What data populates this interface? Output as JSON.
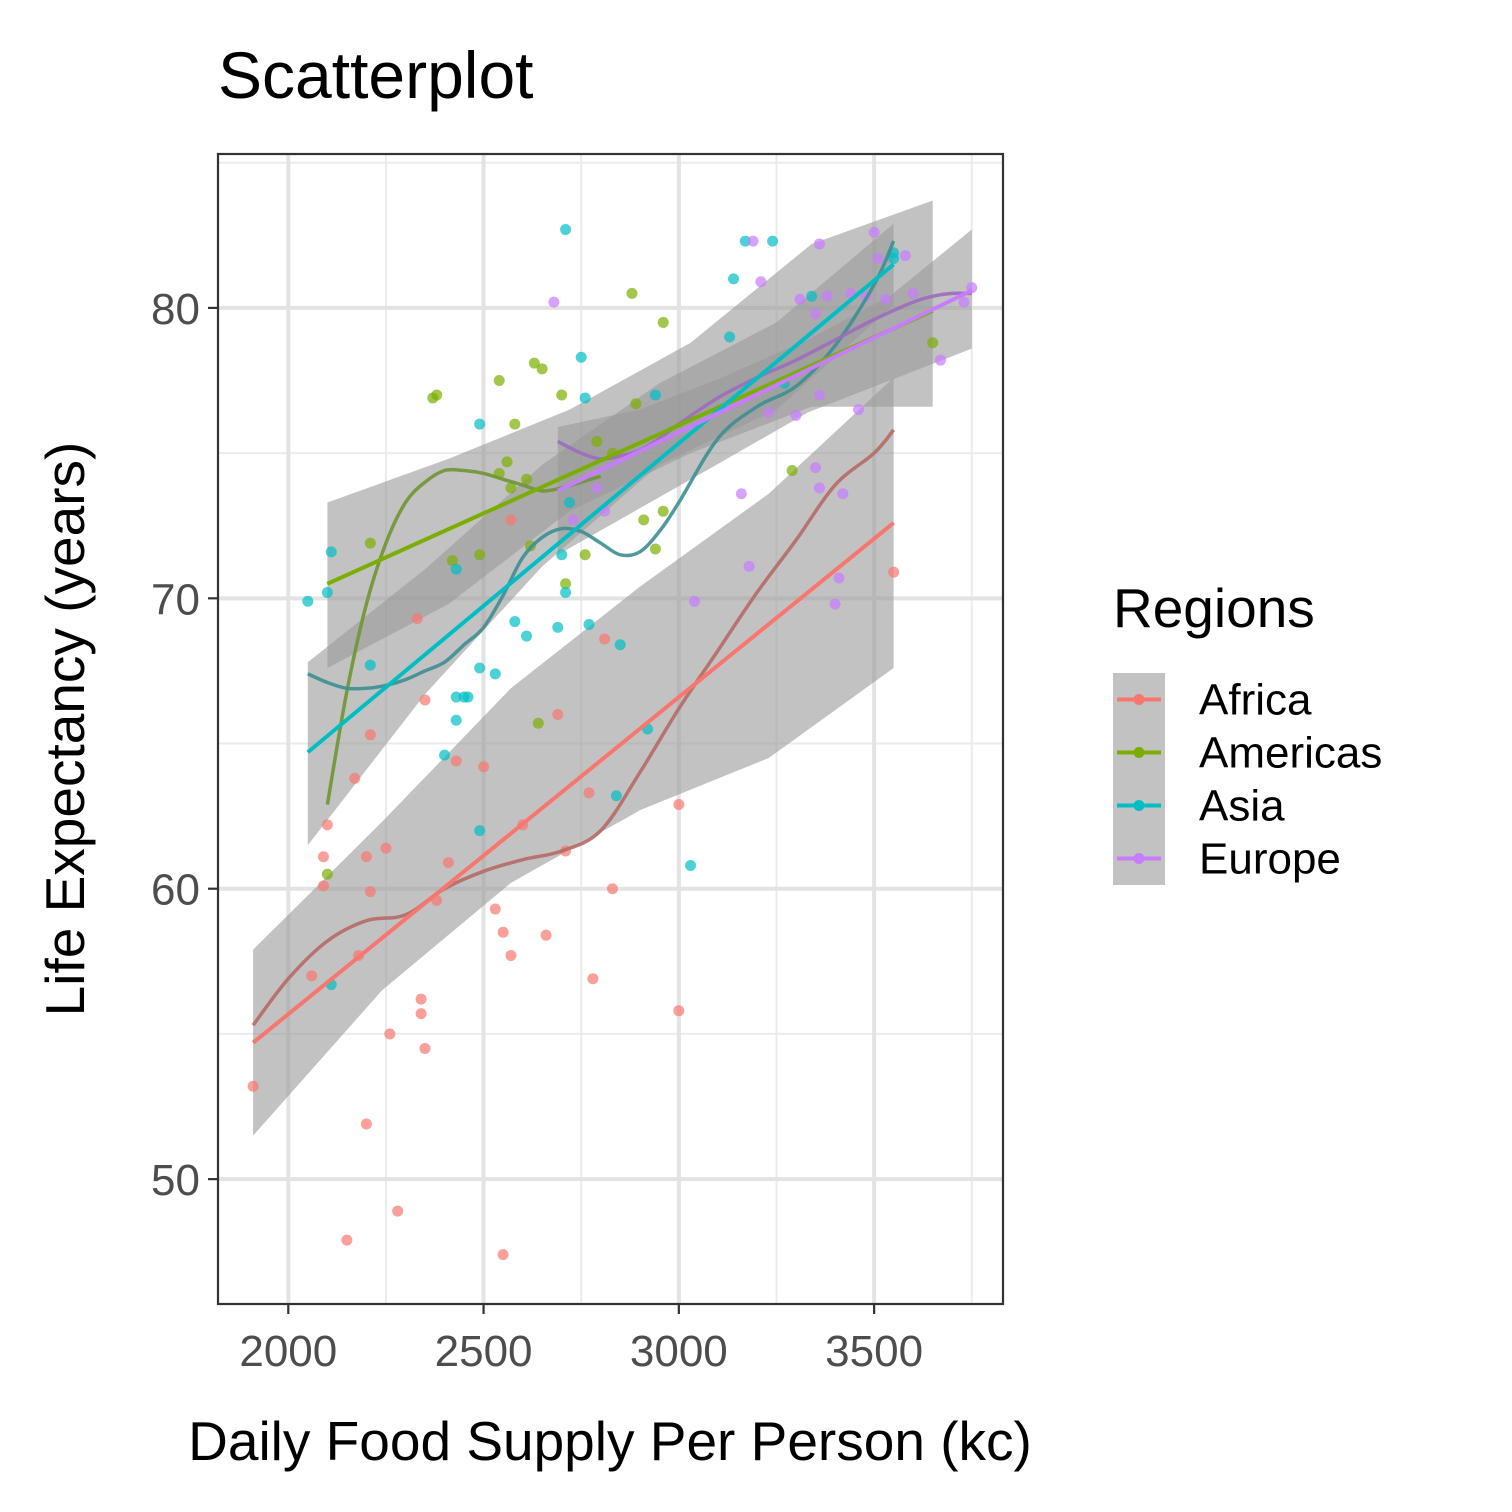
{
  "chart_data": {
    "type": "scatter",
    "title": "Scatterplot",
    "xlabel": "Daily Food Supply Per Person (kc)",
    "ylabel": "Life Expectancy (years)",
    "xlim": [
      1820,
      3830
    ],
    "ylim": [
      45.7,
      85.3
    ],
    "x_ticks": [
      2000,
      2500,
      3000,
      3500
    ],
    "y_ticks": [
      50,
      60,
      70,
      80
    ],
    "grid": true,
    "legend": {
      "title": "Regions",
      "position": "right"
    },
    "series": [
      {
        "name": "Africa",
        "color": "#F8766D",
        "points": [
          [
            1910,
            53.2
          ],
          [
            2060,
            57
          ],
          [
            2090,
            61.1
          ],
          [
            2090,
            60.1
          ],
          [
            2100,
            62.2
          ],
          [
            2150,
            47.9
          ],
          [
            2170,
            63.8
          ],
          [
            2180,
            57.7
          ],
          [
            2200,
            61.1
          ],
          [
            2200,
            51.9
          ],
          [
            2210,
            59.9
          ],
          [
            2210,
            65.3
          ],
          [
            2250,
            61.4
          ],
          [
            2260,
            55
          ],
          [
            2280,
            48.9
          ],
          [
            2330,
            69.3
          ],
          [
            2340,
            56.2
          ],
          [
            2340,
            55.7
          ],
          [
            2350,
            54.5
          ],
          [
            2350,
            66.5
          ],
          [
            2380,
            59.6
          ],
          [
            2410,
            60.9
          ],
          [
            2430,
            64.4
          ],
          [
            2500,
            64.2
          ],
          [
            2530,
            59.3
          ],
          [
            2550,
            58.5
          ],
          [
            2550,
            47.4
          ],
          [
            2570,
            57.7
          ],
          [
            2570,
            72.7
          ],
          [
            2600,
            62.2
          ],
          [
            2660,
            58.4
          ],
          [
            2690,
            66
          ],
          [
            2710,
            61.3
          ],
          [
            2770,
            63.3
          ],
          [
            2780,
            56.9
          ],
          [
            2810,
            68.6
          ],
          [
            2830,
            60
          ],
          [
            3000,
            62.9
          ],
          [
            3000,
            55.8
          ],
          [
            3550,
            70.9
          ]
        ],
        "linear_fit": {
          "x": [
            1910,
            3550
          ],
          "y": [
            54.7,
            72.6
          ]
        },
        "band_upper": [
          57.9,
          62.3,
          66.9,
          70.4,
          73.6,
          77.6
        ],
        "band_lower": [
          51.5,
          56.5,
          60.2,
          62.7,
          64.5,
          67.6
        ],
        "band_x": [
          1910,
          2240,
          2570,
          2900,
          3230,
          3550
        ],
        "smooth_fit": {
          "x": [
            1910,
            2000,
            2100,
            2200,
            2300,
            2400,
            2500,
            2600,
            2700,
            2800,
            2900,
            3000,
            3100,
            3200,
            3300,
            3400,
            3500,
            3550
          ],
          "y": [
            55.3,
            56.9,
            58.2,
            58.9,
            59.1,
            60,
            60.6,
            61,
            61.3,
            62,
            64,
            66.2,
            68.2,
            70.2,
            72,
            73.9,
            75,
            75.8
          ]
        }
      },
      {
        "name": "Americas",
        "color": "#7CAE00",
        "points": [
          [
            2100,
            60.5
          ],
          [
            2210,
            71.9
          ],
          [
            2370,
            76.9
          ],
          [
            2380,
            77
          ],
          [
            2420,
            71.3
          ],
          [
            2490,
            71.5
          ],
          [
            2540,
            77.5
          ],
          [
            2540,
            74.3
          ],
          [
            2560,
            74.7
          ],
          [
            2570,
            73.8
          ],
          [
            2580,
            76
          ],
          [
            2610,
            74.1
          ],
          [
            2620,
            71.8
          ],
          [
            2630,
            78.1
          ],
          [
            2640,
            65.7
          ],
          [
            2650,
            77.9
          ],
          [
            2700,
            77
          ],
          [
            2710,
            70.5
          ],
          [
            2760,
            71.5
          ],
          [
            2790,
            75.4
          ],
          [
            2830,
            75
          ],
          [
            2880,
            80.5
          ],
          [
            2890,
            76.7
          ],
          [
            2910,
            72.7
          ],
          [
            2940,
            71.7
          ],
          [
            2960,
            79.5
          ],
          [
            2960,
            73
          ],
          [
            3290,
            74.4
          ],
          [
            3650,
            78.8
          ]
        ],
        "linear_fit": {
          "x": [
            2100,
            3650
          ],
          "y": [
            70.5,
            79.9
          ]
        },
        "band_upper": [
          73.3,
          74.8,
          76.5,
          78.8,
          82.2,
          83.7
        ],
        "band_lower": [
          67.6,
          69.8,
          73,
          75,
          76.6,
          76.6
        ],
        "band_x": [
          2100,
          2410,
          2720,
          3030,
          3340,
          3650
        ],
        "smooth_fit": {
          "x": [
            2100,
            2150,
            2200,
            2250,
            2300,
            2350,
            2400,
            2450,
            2500,
            2550,
            2600,
            2650,
            2700,
            2750,
            2800
          ],
          "y": [
            62.9,
            66.8,
            69.8,
            71.9,
            73.3,
            74,
            74.4,
            74.4,
            74.3,
            74.1,
            73.9,
            73.7,
            73.8,
            74,
            74.2
          ]
        }
      },
      {
        "name": "Asia",
        "color": "#00BFC4",
        "points": [
          [
            2050,
            69.9
          ],
          [
            2100,
            70.2
          ],
          [
            2110,
            71.6
          ],
          [
            2110,
            56.7
          ],
          [
            2210,
            67.7
          ],
          [
            2400,
            64.6
          ],
          [
            2430,
            71
          ],
          [
            2430,
            66.6
          ],
          [
            2430,
            65.8
          ],
          [
            2450,
            66.6
          ],
          [
            2460,
            66.6
          ],
          [
            2490,
            67.6
          ],
          [
            2490,
            62
          ],
          [
            2490,
            76
          ],
          [
            2530,
            67.4
          ],
          [
            2580,
            69.2
          ],
          [
            2610,
            68.7
          ],
          [
            2690,
            69
          ],
          [
            2700,
            71.5
          ],
          [
            2710,
            82.7
          ],
          [
            2710,
            70.2
          ],
          [
            2720,
            73.3
          ],
          [
            2750,
            78.3
          ],
          [
            2760,
            76.9
          ],
          [
            2770,
            69.1
          ],
          [
            2840,
            63.2
          ],
          [
            2850,
            68.4
          ],
          [
            2920,
            65.5
          ],
          [
            2940,
            77
          ],
          [
            3030,
            60.8
          ],
          [
            3130,
            79
          ],
          [
            3140,
            81
          ],
          [
            3170,
            82.3
          ],
          [
            3240,
            82.3
          ],
          [
            3270,
            77.4
          ],
          [
            3340,
            80.4
          ],
          [
            3550,
            81.7
          ],
          [
            3550,
            81.9
          ]
        ],
        "linear_fit": {
          "x": [
            2050,
            3550
          ],
          "y": [
            64.7,
            81.5
          ]
        },
        "band_upper": [
          67.8,
          71,
          74.6,
          77.4,
          79.5,
          82.9
        ],
        "band_lower": [
          61.5,
          66.7,
          71.1,
          74.6,
          76.5,
          80.1
        ],
        "band_x": [
          2050,
          2350,
          2650,
          2950,
          3250,
          3550
        ],
        "smooth_fit": {
          "x": [
            2050,
            2100,
            2150,
            2200,
            2250,
            2300,
            2350,
            2400,
            2450,
            2500,
            2550,
            2600,
            2650,
            2700,
            2750,
            2800,
            2850,
            2900,
            2950,
            3000,
            3100,
            3200,
            3300,
            3400,
            3500,
            3550
          ],
          "y": [
            67.4,
            67.1,
            66.9,
            66.9,
            67,
            67.2,
            67.5,
            67.8,
            68.4,
            69,
            70.1,
            71.4,
            72.1,
            72.4,
            72.3,
            71.9,
            71.5,
            71.6,
            72.3,
            73.3,
            75.5,
            76.6,
            77.3,
            78.7,
            80.8,
            82.3
          ]
        }
      },
      {
        "name": "Europe",
        "color": "#C77CFF",
        "points": [
          [
            2680,
            80.2
          ],
          [
            2730,
            72.7
          ],
          [
            2790,
            73.8
          ],
          [
            2810,
            73
          ],
          [
            3040,
            69.9
          ],
          [
            3160,
            73.6
          ],
          [
            3180,
            71.1
          ],
          [
            3190,
            82.3
          ],
          [
            3210,
            80.9
          ],
          [
            3230,
            76.4
          ],
          [
            3300,
            76.3
          ],
          [
            3310,
            80.3
          ],
          [
            3350,
            74.5
          ],
          [
            3350,
            79.8
          ],
          [
            3360,
            82.2
          ],
          [
            3360,
            73.8
          ],
          [
            3360,
            77
          ],
          [
            3380,
            80.4
          ],
          [
            3400,
            69.8
          ],
          [
            3410,
            70.7
          ],
          [
            3420,
            73.6
          ],
          [
            3440,
            80.5
          ],
          [
            3460,
            76.5
          ],
          [
            3480,
            80.4
          ],
          [
            3500,
            82.6
          ],
          [
            3510,
            81.7
          ],
          [
            3530,
            80.3
          ],
          [
            3580,
            81.8
          ],
          [
            3600,
            80.5
          ],
          [
            3670,
            78.2
          ],
          [
            3730,
            80.2
          ],
          [
            3750,
            80.7
          ]
        ],
        "linear_fit": {
          "x": [
            2690,
            3750
          ],
          "y": [
            73.7,
            80.6
          ]
        },
        "band_upper": [
          75.9,
          76.5,
          77.6,
          78.9,
          80.4,
          82.7
        ],
        "band_lower": [
          71.5,
          73.1,
          74.7,
          76.4,
          77.5,
          78.6
        ],
        "band_x": [
          2690,
          2900,
          3110,
          3330,
          3540,
          3750
        ],
        "smooth_fit": {
          "x": [
            2690,
            2750,
            2800,
            2850,
            2900,
            2950,
            3000,
            3100,
            3200,
            3300,
            3400,
            3500,
            3600,
            3650,
            3700,
            3750
          ],
          "y": [
            75.4,
            75,
            74.8,
            74.9,
            75.1,
            75.5,
            76,
            76.9,
            77.6,
            78.2,
            78.9,
            79.6,
            80.2,
            80.4,
            80.5,
            80.5
          ]
        }
      }
    ]
  }
}
